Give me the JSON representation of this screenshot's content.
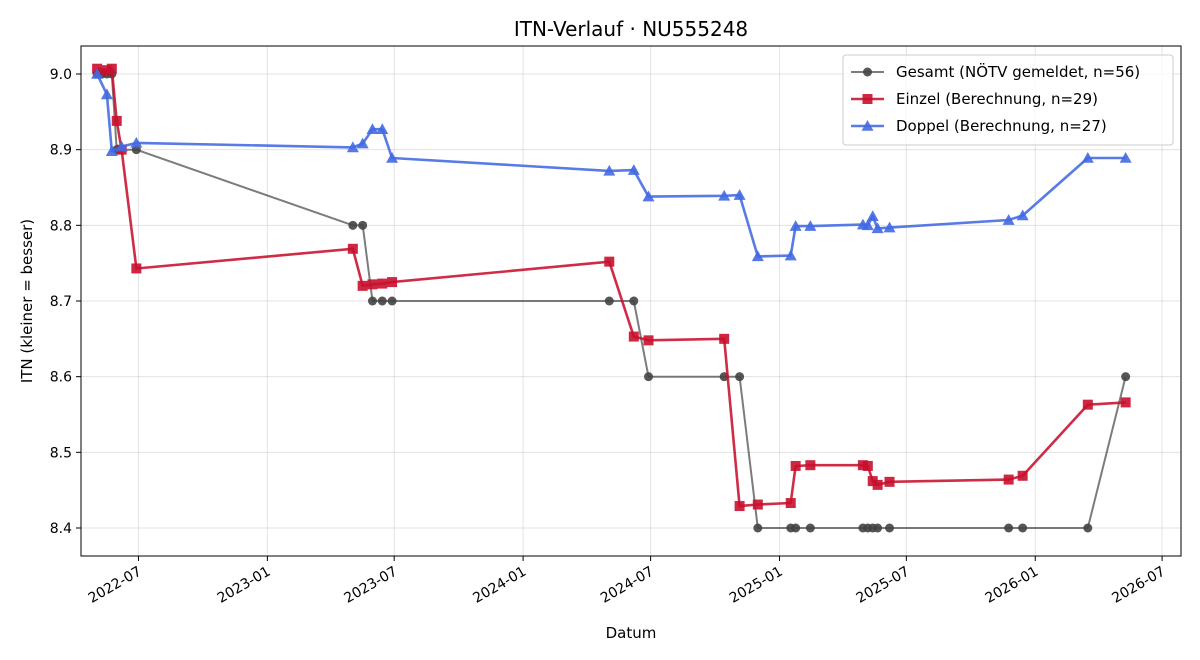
{
  "chart_data": {
    "type": "line",
    "title": "ITN-Verlauf · NU555248",
    "xlabel": "Datum",
    "ylabel": "ITN  (kleiner = besser)",
    "x_tick_labels": [
      "2022-07",
      "2023-01",
      "2023-07",
      "2024-01",
      "2024-07",
      "2025-01",
      "2025-07",
      "2026-01",
      "2026-07"
    ],
    "x_ticks": [
      "2022-07-01",
      "2023-01-01",
      "2023-07-01",
      "2024-01-01",
      "2024-07-01",
      "2025-01-01",
      "2025-07-01",
      "2026-01-01",
      "2026-07-01"
    ],
    "y_ticks": [
      8.4,
      8.5,
      8.6,
      8.7,
      8.8,
      8.9,
      9.0
    ],
    "xlim": [
      "2022-04-10",
      "2026-07-28"
    ],
    "ylim": [
      8.363,
      9.037
    ],
    "grid": true,
    "legend_position": "top-right",
    "series": [
      {
        "name": "Gesamt (NÖTV gemeldet, n=56)",
        "color": "#444444",
        "marker": "circle",
        "points": [
          [
            "2022-05-03",
            9.0
          ],
          [
            "2022-05-10",
            9.0
          ],
          [
            "2022-05-17",
            9.0
          ],
          [
            "2022-05-24",
            9.0
          ],
          [
            "2022-05-31",
            8.9
          ],
          [
            "2022-06-28",
            8.9
          ],
          [
            "2023-05-03",
            8.8
          ],
          [
            "2023-05-17",
            8.8
          ],
          [
            "2023-05-31",
            8.7
          ],
          [
            "2023-06-14",
            8.7
          ],
          [
            "2023-06-28",
            8.7
          ],
          [
            "2024-05-03",
            8.7
          ],
          [
            "2024-06-07",
            8.7
          ],
          [
            "2024-06-28",
            8.6
          ],
          [
            "2024-10-14",
            8.6
          ],
          [
            "2024-11-05",
            8.6
          ],
          [
            "2024-12-01",
            8.4
          ],
          [
            "2025-01-17",
            8.4
          ],
          [
            "2025-01-24",
            8.4
          ],
          [
            "2025-02-14",
            8.4
          ],
          [
            "2025-04-30",
            8.4
          ],
          [
            "2025-05-07",
            8.4
          ],
          [
            "2025-05-14",
            8.4
          ],
          [
            "2025-05-21",
            8.4
          ],
          [
            "2025-06-07",
            8.4
          ],
          [
            "2025-11-24",
            8.4
          ],
          [
            "2025-12-14",
            8.4
          ],
          [
            "2026-03-17",
            8.4
          ],
          [
            "2026-05-10",
            8.6
          ]
        ]
      },
      {
        "name": "Einzel (Berechnung, n=29)",
        "color": "#c8102e",
        "marker": "square",
        "points": [
          [
            "2022-05-03",
            9.007
          ],
          [
            "2022-05-17",
            9.005
          ],
          [
            "2022-05-24",
            9.007
          ],
          [
            "2022-05-31",
            8.938
          ],
          [
            "2022-06-07",
            8.9
          ],
          [
            "2022-06-28",
            8.743
          ],
          [
            "2023-05-03",
            8.769
          ],
          [
            "2023-05-17",
            8.72
          ],
          [
            "2023-05-31",
            8.722
          ],
          [
            "2023-06-14",
            8.723
          ],
          [
            "2023-06-28",
            8.725
          ],
          [
            "2024-05-03",
            8.752
          ],
          [
            "2024-06-07",
            8.653
          ],
          [
            "2024-06-28",
            8.648
          ],
          [
            "2024-10-14",
            8.65
          ],
          [
            "2024-11-05",
            8.429
          ],
          [
            "2024-12-01",
            8.431
          ],
          [
            "2025-01-17",
            8.433
          ],
          [
            "2025-01-24",
            8.482
          ],
          [
            "2025-02-14",
            8.483
          ],
          [
            "2025-04-30",
            8.483
          ],
          [
            "2025-05-07",
            8.482
          ],
          [
            "2025-05-14",
            8.462
          ],
          [
            "2025-05-21",
            8.457
          ],
          [
            "2025-06-07",
            8.461
          ],
          [
            "2025-11-24",
            8.464
          ],
          [
            "2025-12-14",
            8.469
          ],
          [
            "2026-03-17",
            8.563
          ],
          [
            "2026-05-10",
            8.566
          ]
        ]
      },
      {
        "name": "Doppel (Berechnung, n=27)",
        "color": "#4169e1",
        "marker": "triangle",
        "points": [
          [
            "2022-05-03",
            9.0
          ],
          [
            "2022-05-17",
            8.973
          ],
          [
            "2022-05-24",
            8.898
          ],
          [
            "2022-06-07",
            8.904
          ],
          [
            "2022-06-28",
            8.909
          ],
          [
            "2023-05-03",
            8.903
          ],
          [
            "2023-05-17",
            8.908
          ],
          [
            "2023-05-31",
            8.927
          ],
          [
            "2023-06-14",
            8.927
          ],
          [
            "2023-06-28",
            8.889
          ],
          [
            "2024-05-03",
            8.872
          ],
          [
            "2024-06-07",
            8.873
          ],
          [
            "2024-06-28",
            8.838
          ],
          [
            "2024-10-14",
            8.839
          ],
          [
            "2024-11-05",
            8.84
          ],
          [
            "2024-12-01",
            8.759
          ],
          [
            "2025-01-17",
            8.76
          ],
          [
            "2025-01-24",
            8.799
          ],
          [
            "2025-02-14",
            8.799
          ],
          [
            "2025-04-30",
            8.801
          ],
          [
            "2025-05-07",
            8.8
          ],
          [
            "2025-05-14",
            8.812
          ],
          [
            "2025-05-21",
            8.796
          ],
          [
            "2025-06-07",
            8.797
          ],
          [
            "2025-11-24",
            8.807
          ],
          [
            "2025-12-14",
            8.813
          ],
          [
            "2026-03-17",
            8.889
          ],
          [
            "2026-05-10",
            8.889
          ]
        ]
      }
    ]
  }
}
